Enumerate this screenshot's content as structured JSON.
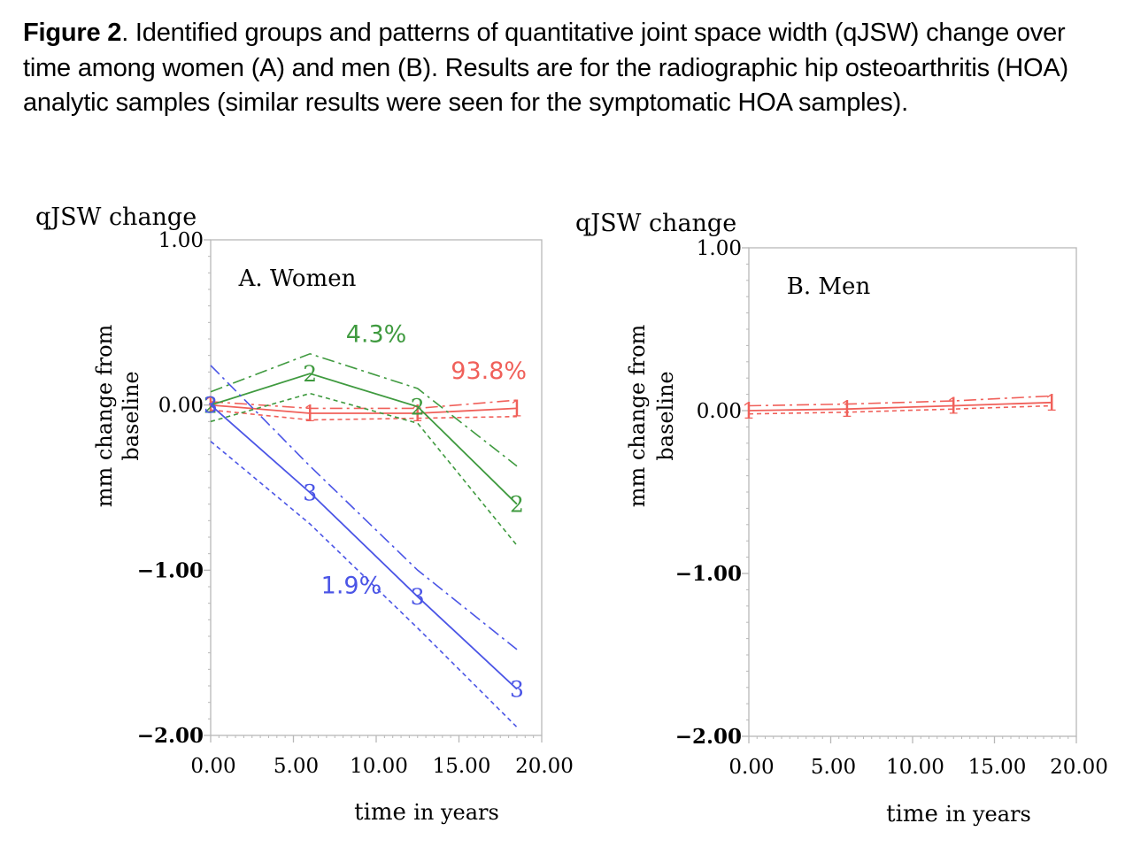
{
  "caption": {
    "label": "Figure 2",
    "text": ". Identified groups and patterns of quantitative joint space width (qJSW) change over time among women (A) and men (B). Results are for the radiographic hip osteoarthritis (HOA) analytic samples (similar results were seen for the symptomatic HOA samples)."
  },
  "colors": {
    "red": "#f0605a",
    "green": "#3f9a3f",
    "blue": "#4b55e6",
    "frame": "#b8b8b8"
  },
  "chart_data": [
    {
      "type": "line",
      "title": "A. Women",
      "ylabel_top": "qJSW change",
      "ylabel": "mm change from baseline",
      "ylabel_line1": "mm change from",
      "ylabel_line2": "baseline",
      "xlabel": "time",
      "xlabel_units": "in years",
      "xlim": [
        0,
        20
      ],
      "ylim": [
        -2,
        1
      ],
      "xticks": [
        "0.00",
        "5.00",
        "10.00",
        "15.00",
        "20.00"
      ],
      "yticks": [
        "1.00",
        "0.00",
        "−1.00",
        "−2.00"
      ],
      "ytick_values": [
        1,
        0,
        -1,
        -2
      ],
      "series": [
        {
          "name": "Group 1",
          "label": "93.8%",
          "marker": "1",
          "color": "red",
          "x": [
            0,
            6,
            12.5,
            18.5
          ],
          "values": [
            0,
            -0.05,
            -0.05,
            -0.02
          ],
          "upper": [
            0.02,
            -0.02,
            -0.02,
            0.03
          ],
          "lower": [
            -0.03,
            -0.09,
            -0.08,
            -0.07
          ]
        },
        {
          "name": "Group 2",
          "label": "4.3%",
          "marker": "2",
          "color": "green",
          "x": [
            0,
            6,
            12.5,
            18.5
          ],
          "values": [
            0,
            0.19,
            -0.01,
            -0.6
          ],
          "upper": [
            0.08,
            0.31,
            0.1,
            -0.37
          ],
          "lower": [
            -0.1,
            0.07,
            -0.11,
            -0.85
          ]
        },
        {
          "name": "Group 3",
          "label": "1.9%",
          "marker": "3",
          "color": "blue",
          "x": [
            0,
            6,
            12.5,
            18.5
          ],
          "values": [
            0,
            -0.53,
            -1.16,
            -1.72
          ],
          "upper": [
            0.24,
            -0.37,
            -1.0,
            -1.48
          ],
          "lower": [
            -0.22,
            -0.72,
            -1.35,
            -1.95
          ]
        }
      ],
      "annotations": [
        {
          "series": "Group 2",
          "text": "4.3%",
          "x": 10,
          "y": 0.38
        },
        {
          "series": "Group 1",
          "text": "93.8%",
          "x": 16.8,
          "y": 0.16
        },
        {
          "series": "Group 3",
          "text": "1.9%",
          "x": 8.5,
          "y": -1.14
        }
      ]
    },
    {
      "type": "line",
      "title": "B. Men",
      "ylabel_top": "qJSW change",
      "ylabel": "mm change from baseline",
      "ylabel_line1": "mm change from",
      "ylabel_line2": "baseline",
      "xlabel": "time",
      "xlabel_units": "in years",
      "xlim": [
        0,
        20
      ],
      "ylim": [
        -2,
        1
      ],
      "xticks": [
        "0.00",
        "5.00",
        "10.00",
        "15.00",
        "20.00"
      ],
      "yticks": [
        "1.00",
        "0.00",
        "−1.00",
        "−2.00"
      ],
      "ytick_values": [
        1,
        0,
        -1,
        -2
      ],
      "series": [
        {
          "name": "Group 1",
          "label": "",
          "marker": "1",
          "color": "red",
          "x": [
            0,
            6,
            12.5,
            18.5
          ],
          "values": [
            0,
            0.01,
            0.03,
            0.05
          ],
          "upper": [
            0.03,
            0.04,
            0.06,
            0.09
          ],
          "lower": [
            -0.02,
            -0.01,
            0.01,
            0.03
          ]
        }
      ],
      "annotations": []
    }
  ]
}
